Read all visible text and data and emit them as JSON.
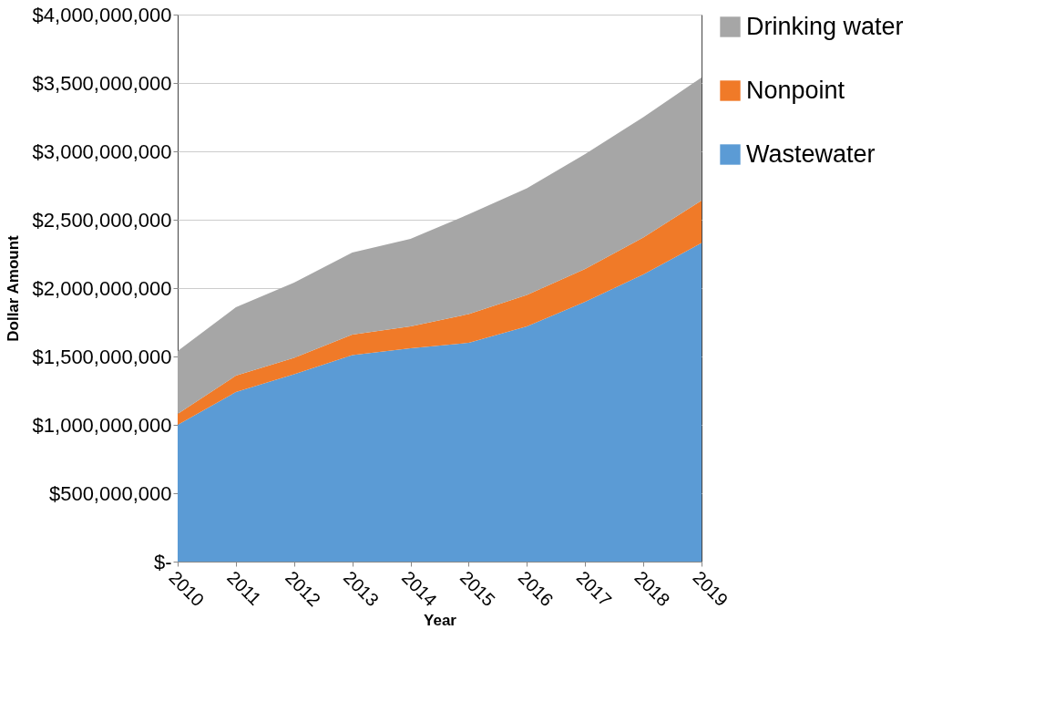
{
  "chart_data": {
    "type": "area",
    "xlabel": "Year",
    "ylabel": "Dollar Amount",
    "categories": [
      "2010",
      "2011",
      "2012",
      "2013",
      "2014",
      "2015",
      "2016",
      "2017",
      "2018",
      "2019"
    ],
    "stacked": true,
    "series": [
      {
        "name": "Wastewater",
        "color": "#5b9bd5",
        "values": [
          1000000000,
          1240000000,
          1370000000,
          1510000000,
          1560000000,
          1600000000,
          1720000000,
          1900000000,
          2100000000,
          2330000000
        ]
      },
      {
        "name": "Nonpoint",
        "color": "#f07a28",
        "values": [
          80000000,
          120000000,
          120000000,
          150000000,
          160000000,
          210000000,
          230000000,
          240000000,
          270000000,
          310000000
        ]
      },
      {
        "name": "Drinking water",
        "color": "#a6a6a6",
        "values": [
          460000000,
          500000000,
          550000000,
          600000000,
          640000000,
          730000000,
          780000000,
          840000000,
          880000000,
          900000000
        ]
      }
    ],
    "ylim": [
      0,
      4000000000
    ],
    "yticks": [
      {
        "value": 0,
        "label": "$-"
      },
      {
        "value": 500000000,
        "label": "$500,000,000"
      },
      {
        "value": 1000000000,
        "label": "$1,000,000,000"
      },
      {
        "value": 1500000000,
        "label": "$1,500,000,000"
      },
      {
        "value": 2000000000,
        "label": "$2,000,000,000"
      },
      {
        "value": 2500000000,
        "label": "$2,500,000,000"
      },
      {
        "value": 3000000000,
        "label": "$3,000,000,000"
      },
      {
        "value": 3500000000,
        "label": "$3,500,000,000"
      },
      {
        "value": 4000000000,
        "label": "$4,000,000,000"
      }
    ],
    "grid": "y",
    "legend": "right"
  }
}
